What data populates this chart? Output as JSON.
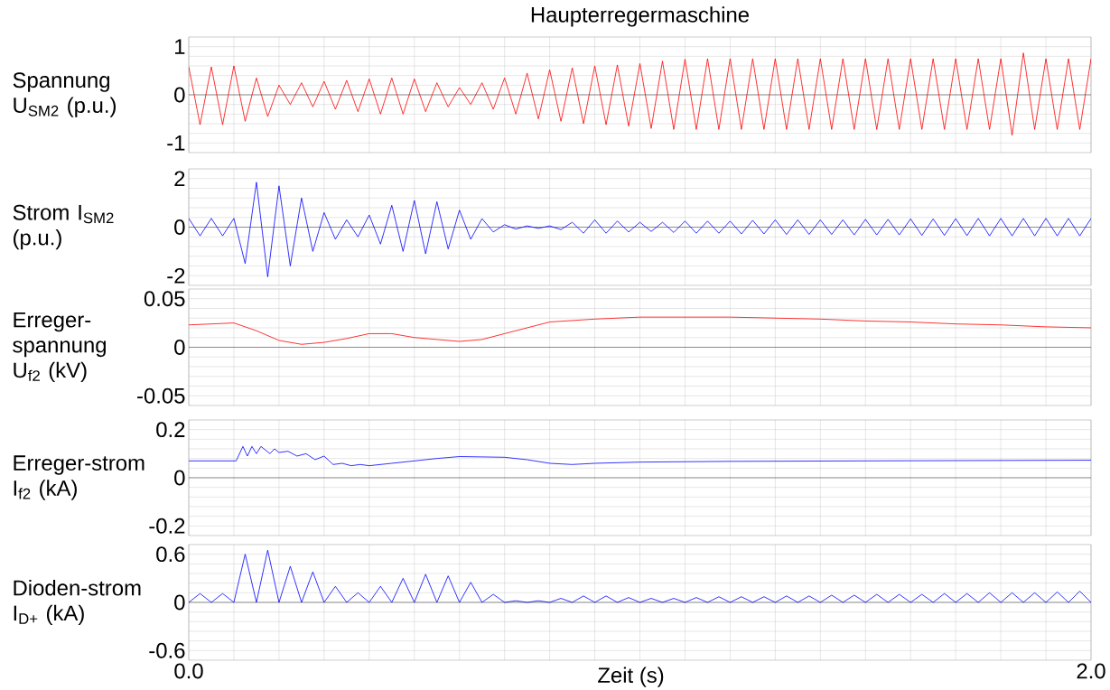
{
  "chart_data": [
    {
      "type": "line",
      "title": "Haupterregermaschine",
      "ylabel": "Spannung U$_{SM2}$ (p.u.)",
      "tick_labels": "y",
      "grid": true,
      "xlim": [
        0,
        2
      ],
      "ylim": [
        -1.2,
        1.2
      ],
      "yticks": [
        -1,
        0,
        1
      ],
      "xticks": [
        {
          "value": 0,
          "label": null
        },
        {
          "value": 0.1,
          "label": null
        },
        {
          "value": 0.2,
          "label": null
        },
        {
          "value": 0.3,
          "label": null
        },
        {
          "value": 0.4,
          "label": null
        },
        {
          "value": 0.5,
          "label": null
        },
        {
          "value": 0.6,
          "label": null
        },
        {
          "value": 0.7,
          "label": null
        },
        {
          "value": 0.8,
          "label": null
        },
        {
          "value": 0.9,
          "label": null
        },
        {
          "value": 1.0,
          "label": null
        },
        {
          "value": 1.1,
          "label": null
        },
        {
          "value": 1.2,
          "label": null
        },
        {
          "value": 1.3,
          "label": null
        },
        {
          "value": 1.4,
          "label": null
        },
        {
          "value": 1.5,
          "label": null
        },
        {
          "value": 1.6,
          "label": null
        },
        {
          "value": 1.7,
          "label": null
        },
        {
          "value": 1.8,
          "label": null
        },
        {
          "value": 1.9,
          "label": null
        },
        {
          "value": 2.0,
          "label": null
        }
      ],
      "ref_lines": [
        {
          "axis": "y",
          "value": 0,
          "color": "#000000"
        }
      ],
      "x": [
        0,
        0.025,
        0.05,
        0.075,
        0.1,
        0.125,
        0.15,
        0.175,
        0.2,
        0.225,
        0.25,
        0.275,
        0.3,
        0.325,
        0.35,
        0.375,
        0.4,
        0.425,
        0.45,
        0.475,
        0.5,
        0.525,
        0.55,
        0.575,
        0.6,
        0.625,
        0.65,
        0.675,
        0.7,
        0.725,
        0.75,
        0.775,
        0.8,
        0.825,
        0.85,
        0.875,
        0.9,
        0.925,
        0.95,
        0.975,
        1.0,
        1.025,
        1.05,
        1.075,
        1.1,
        1.125,
        1.15,
        1.175,
        1.2,
        1.225,
        1.25,
        1.275,
        1.3,
        1.325,
        1.35,
        1.375,
        1.4,
        1.425,
        1.45,
        1.475,
        1.5,
        1.525,
        1.55,
        1.575,
        1.6,
        1.625,
        1.65,
        1.675,
        1.7,
        1.725,
        1.75,
        1.775,
        1.8,
        1.825,
        1.85,
        1.875,
        1.9,
        1.925,
        1.95,
        1.975,
        2.0
      ],
      "series": [
        {
          "color": "#ff0000",
          "values": [
            0.58,
            -0.62,
            0.58,
            -0.62,
            0.6,
            -0.55,
            0.35,
            -0.45,
            0.2,
            -0.2,
            0.25,
            -0.25,
            0.28,
            -0.3,
            0.3,
            -0.35,
            0.33,
            -0.4,
            0.35,
            -0.4,
            0.33,
            -0.35,
            0.25,
            -0.25,
            0.15,
            -0.2,
            0.25,
            -0.3,
            0.35,
            -0.4,
            0.45,
            -0.5,
            0.52,
            -0.55,
            0.56,
            -0.6,
            0.6,
            -0.62,
            0.62,
            -0.65,
            0.65,
            -0.7,
            0.7,
            -0.72,
            0.74,
            -0.72,
            0.75,
            -0.72,
            0.75,
            -0.72,
            0.75,
            -0.72,
            0.75,
            -0.72,
            0.75,
            -0.72,
            0.75,
            -0.72,
            0.75,
            -0.72,
            0.75,
            -0.72,
            0.75,
            -0.72,
            0.75,
            -0.72,
            0.75,
            -0.72,
            0.75,
            -0.72,
            0.75,
            -0.72,
            0.75,
            -0.84,
            0.87,
            -0.72,
            0.75,
            -0.72,
            0.75,
            -0.72,
            0.75
          ]
        }
      ]
    },
    {
      "type": "line",
      "ylabel": "Strom I$_{SM2}$ (p.u.)",
      "tick_labels": "y",
      "grid": true,
      "xlim": [
        0,
        2
      ],
      "ylim": [
        -2.4,
        2.4
      ],
      "yticks": [
        -2,
        0,
        2
      ],
      "xticks": [
        {
          "value": 0,
          "label": null
        },
        {
          "value": 0.1,
          "label": null
        },
        {
          "value": 0.2,
          "label": null
        },
        {
          "value": 0.3,
          "label": null
        },
        {
          "value": 0.4,
          "label": null
        },
        {
          "value": 0.5,
          "label": null
        },
        {
          "value": 0.6,
          "label": null
        },
        {
          "value": 0.7,
          "label": null
        },
        {
          "value": 0.8,
          "label": null
        },
        {
          "value": 0.9,
          "label": null
        },
        {
          "value": 1.0,
          "label": null
        },
        {
          "value": 1.1,
          "label": null
        },
        {
          "value": 1.2,
          "label": null
        },
        {
          "value": 1.3,
          "label": null
        },
        {
          "value": 1.4,
          "label": null
        },
        {
          "value": 1.5,
          "label": null
        },
        {
          "value": 1.6,
          "label": null
        },
        {
          "value": 1.7,
          "label": null
        },
        {
          "value": 1.8,
          "label": null
        },
        {
          "value": 1.9,
          "label": null
        },
        {
          "value": 2.0,
          "label": null
        }
      ],
      "ref_lines": [
        {
          "axis": "y",
          "value": 0,
          "color": "#000000"
        }
      ],
      "x": [
        0,
        0.025,
        0.05,
        0.075,
        0.1,
        0.125,
        0.15,
        0.175,
        0.2,
        0.225,
        0.25,
        0.275,
        0.3,
        0.325,
        0.35,
        0.375,
        0.4,
        0.425,
        0.45,
        0.475,
        0.5,
        0.525,
        0.55,
        0.575,
        0.6,
        0.625,
        0.65,
        0.675,
        0.7,
        0.725,
        0.75,
        0.775,
        0.8,
        0.825,
        0.85,
        0.875,
        0.9,
        0.925,
        0.95,
        0.975,
        1.0,
        1.025,
        1.05,
        1.075,
        1.1,
        1.125,
        1.15,
        1.175,
        1.2,
        1.225,
        1.25,
        1.275,
        1.3,
        1.325,
        1.35,
        1.375,
        1.4,
        1.425,
        1.45,
        1.475,
        1.5,
        1.525,
        1.55,
        1.575,
        1.6,
        1.625,
        1.65,
        1.675,
        1.7,
        1.725,
        1.75,
        1.775,
        1.8,
        1.825,
        1.85,
        1.875,
        1.9,
        1.925,
        1.95,
        1.975,
        2.0
      ],
      "series": [
        {
          "color": "#0000ff",
          "values": [
            0.36,
            -0.36,
            0.36,
            -0.36,
            0.36,
            -1.5,
            1.85,
            -2.05,
            1.7,
            -1.6,
            1.2,
            -1.0,
            0.6,
            -0.5,
            0.3,
            -0.4,
            0.5,
            -0.7,
            0.9,
            -1.0,
            1.1,
            -1.1,
            1.05,
            -0.9,
            0.7,
            -0.5,
            0.35,
            -0.2,
            0.1,
            -0.08,
            0.05,
            -0.05,
            0.05,
            -0.1,
            0.2,
            -0.25,
            0.3,
            -0.25,
            0.25,
            -0.2,
            0.2,
            -0.18,
            0.2,
            -0.22,
            0.25,
            -0.25,
            0.25,
            -0.25,
            0.25,
            -0.28,
            0.28,
            -0.28,
            0.3,
            -0.3,
            0.3,
            -0.3,
            0.3,
            -0.3,
            0.3,
            -0.32,
            0.32,
            -0.32,
            0.32,
            -0.32,
            0.34,
            -0.34,
            0.34,
            -0.34,
            0.35,
            -0.35,
            0.36,
            -0.36,
            0.36,
            -0.36,
            0.36,
            -0.36,
            0.36,
            -0.36,
            0.36,
            -0.36,
            0.36
          ]
        }
      ]
    },
    {
      "type": "line",
      "ylabel": "Erreger-spannung U$_{f2}$ (kV)",
      "tick_labels": "y",
      "grid": true,
      "xlim": [
        0,
        2
      ],
      "ylim": [
        -0.06,
        0.06
      ],
      "yticks": [
        -0.05,
        0,
        0.05
      ],
      "xticks": [
        {
          "value": 0,
          "label": null
        },
        {
          "value": 0.1,
          "label": null
        },
        {
          "value": 0.2,
          "label": null
        },
        {
          "value": 0.3,
          "label": null
        },
        {
          "value": 0.4,
          "label": null
        },
        {
          "value": 0.5,
          "label": null
        },
        {
          "value": 0.6,
          "label": null
        },
        {
          "value": 0.7,
          "label": null
        },
        {
          "value": 0.8,
          "label": null
        },
        {
          "value": 0.9,
          "label": null
        },
        {
          "value": 1.0,
          "label": null
        },
        {
          "value": 1.1,
          "label": null
        },
        {
          "value": 1.2,
          "label": null
        },
        {
          "value": 1.3,
          "label": null
        },
        {
          "value": 1.4,
          "label": null
        },
        {
          "value": 1.5,
          "label": null
        },
        {
          "value": 1.6,
          "label": null
        },
        {
          "value": 1.7,
          "label": null
        },
        {
          "value": 1.8,
          "label": null
        },
        {
          "value": 1.9,
          "label": null
        },
        {
          "value": 2.0,
          "label": null
        }
      ],
      "ref_lines": [
        {
          "axis": "y",
          "value": 0,
          "color": "#000000"
        }
      ],
      "x": [
        0,
        0.05,
        0.1,
        0.15,
        0.2,
        0.25,
        0.3,
        0.35,
        0.4,
        0.45,
        0.5,
        0.55,
        0.6,
        0.65,
        0.7,
        0.75,
        0.8,
        0.9,
        1.0,
        1.1,
        1.2,
        1.3,
        1.4,
        1.5,
        1.6,
        1.7,
        1.8,
        1.9,
        2.0
      ],
      "series": [
        {
          "color": "#ff0000",
          "values": [
            0.023,
            0.024,
            0.025,
            0.017,
            0.007,
            0.003,
            0.005,
            0.009,
            0.014,
            0.014,
            0.01,
            0.008,
            0.006,
            0.008,
            0.014,
            0.02,
            0.026,
            0.029,
            0.031,
            0.031,
            0.031,
            0.03,
            0.029,
            0.027,
            0.026,
            0.024,
            0.023,
            0.021,
            0.02
          ]
        }
      ]
    },
    {
      "type": "line",
      "ylabel": "Erreger-strom I$_{f2}$ (kA)",
      "tick_labels": "y",
      "grid": true,
      "xlim": [
        0,
        2
      ],
      "ylim": [
        -0.24,
        0.24
      ],
      "yticks": [
        -0.2,
        0,
        0.2
      ],
      "xticks": [
        {
          "value": 0,
          "label": null
        },
        {
          "value": 0.1,
          "label": null
        },
        {
          "value": 0.2,
          "label": null
        },
        {
          "value": 0.3,
          "label": null
        },
        {
          "value": 0.4,
          "label": null
        },
        {
          "value": 0.5,
          "label": null
        },
        {
          "value": 0.6,
          "label": null
        },
        {
          "value": 0.7,
          "label": null
        },
        {
          "value": 0.8,
          "label": null
        },
        {
          "value": 0.9,
          "label": null
        },
        {
          "value": 1.0,
          "label": null
        },
        {
          "value": 1.1,
          "label": null
        },
        {
          "value": 1.2,
          "label": null
        },
        {
          "value": 1.3,
          "label": null
        },
        {
          "value": 1.4,
          "label": null
        },
        {
          "value": 1.5,
          "label": null
        },
        {
          "value": 1.6,
          "label": null
        },
        {
          "value": 1.7,
          "label": null
        },
        {
          "value": 1.8,
          "label": null
        },
        {
          "value": 1.9,
          "label": null
        },
        {
          "value": 2.0,
          "label": null
        }
      ],
      "ref_lines": [
        {
          "axis": "y",
          "value": 0,
          "color": "#000000"
        }
      ],
      "x": [
        0,
        0.1,
        0.105,
        0.12,
        0.13,
        0.14,
        0.15,
        0.16,
        0.18,
        0.19,
        0.2,
        0.22,
        0.24,
        0.26,
        0.28,
        0.3,
        0.32,
        0.34,
        0.36,
        0.38,
        0.4,
        0.45,
        0.5,
        0.55,
        0.6,
        0.7,
        0.75,
        0.8,
        0.85,
        0.9,
        1.0,
        1.2,
        1.5,
        2.0
      ],
      "series": [
        {
          "color": "#0000ff",
          "values": [
            0.07,
            0.07,
            0.07,
            0.13,
            0.09,
            0.13,
            0.1,
            0.13,
            0.1,
            0.12,
            0.105,
            0.11,
            0.09,
            0.1,
            0.075,
            0.09,
            0.055,
            0.06,
            0.05,
            0.055,
            0.05,
            0.06,
            0.07,
            0.08,
            0.088,
            0.085,
            0.075,
            0.06,
            0.055,
            0.06,
            0.065,
            0.068,
            0.07,
            0.073
          ]
        }
      ]
    },
    {
      "type": "line",
      "ylabel": "Dioden-strom I$_{D+}$ (kA)",
      "xlabel": "Zeit (s)",
      "grid": true,
      "xlim": [
        0,
        2
      ],
      "ylim": [
        -0.72,
        0.72
      ],
      "yticks": [
        -0.6,
        0,
        0.6
      ],
      "xticks": [
        {
          "value": 0,
          "label": "0.0"
        },
        {
          "value": 0.1,
          "label": null
        },
        {
          "value": 0.2,
          "label": null
        },
        {
          "value": 0.3,
          "label": null
        },
        {
          "value": 0.4,
          "label": null
        },
        {
          "value": 0.5,
          "label": null
        },
        {
          "value": 0.6,
          "label": null
        },
        {
          "value": 0.7,
          "label": null
        },
        {
          "value": 0.8,
          "label": null
        },
        {
          "value": 0.9,
          "label": null
        },
        {
          "value": 1.0,
          "label": null
        },
        {
          "value": 1.1,
          "label": null
        },
        {
          "value": 1.2,
          "label": null
        },
        {
          "value": 1.3,
          "label": null
        },
        {
          "value": 1.4,
          "label": null
        },
        {
          "value": 1.5,
          "label": null
        },
        {
          "value": 1.6,
          "label": null
        },
        {
          "value": 1.7,
          "label": null
        },
        {
          "value": 1.8,
          "label": null
        },
        {
          "value": 1.9,
          "label": null
        },
        {
          "value": 2.0,
          "label": "2.0"
        }
      ],
      "ref_lines": [
        {
          "axis": "y",
          "value": 0,
          "color": "#000000"
        }
      ],
      "x": [
        0,
        0.025,
        0.05,
        0.075,
        0.1,
        0.125,
        0.15,
        0.175,
        0.2,
        0.225,
        0.25,
        0.275,
        0.3,
        0.325,
        0.35,
        0.375,
        0.4,
        0.425,
        0.45,
        0.475,
        0.5,
        0.525,
        0.55,
        0.575,
        0.6,
        0.625,
        0.65,
        0.675,
        0.7,
        0.725,
        0.75,
        0.775,
        0.8,
        0.825,
        0.85,
        0.875,
        0.9,
        0.925,
        0.95,
        0.975,
        1.0,
        1.025,
        1.05,
        1.075,
        1.1,
        1.125,
        1.15,
        1.175,
        1.2,
        1.225,
        1.25,
        1.275,
        1.3,
        1.325,
        1.35,
        1.375,
        1.4,
        1.425,
        1.45,
        1.475,
        1.5,
        1.525,
        1.55,
        1.575,
        1.6,
        1.625,
        1.65,
        1.675,
        1.7,
        1.725,
        1.75,
        1.775,
        1.8,
        1.825,
        1.85,
        1.875,
        1.9,
        1.925,
        1.95,
        1.975,
        2.0
      ],
      "series": [
        {
          "color": "#0000ff",
          "values": [
            0,
            0.11,
            0,
            0.11,
            0,
            0.6,
            0,
            0.65,
            0,
            0.45,
            0,
            0.38,
            0,
            0.2,
            0,
            0.12,
            0,
            0.2,
            0,
            0.3,
            0,
            0.35,
            0,
            0.33,
            0,
            0.25,
            0,
            0.1,
            0,
            0.02,
            0,
            0.02,
            0,
            0.05,
            0,
            0.08,
            0,
            0.08,
            0,
            0.06,
            0,
            0.05,
            0,
            0.05,
            0,
            0.06,
            0,
            0.07,
            0,
            0.07,
            0,
            0.07,
            0,
            0.08,
            0,
            0.08,
            0,
            0.09,
            0,
            0.09,
            0,
            0.1,
            0,
            0.1,
            0,
            0.1,
            0,
            0.11,
            0,
            0.11,
            0,
            0.12,
            0,
            0.12,
            0,
            0.12,
            0,
            0.13,
            0,
            0.14,
            0
          ]
        }
      ]
    }
  ]
}
